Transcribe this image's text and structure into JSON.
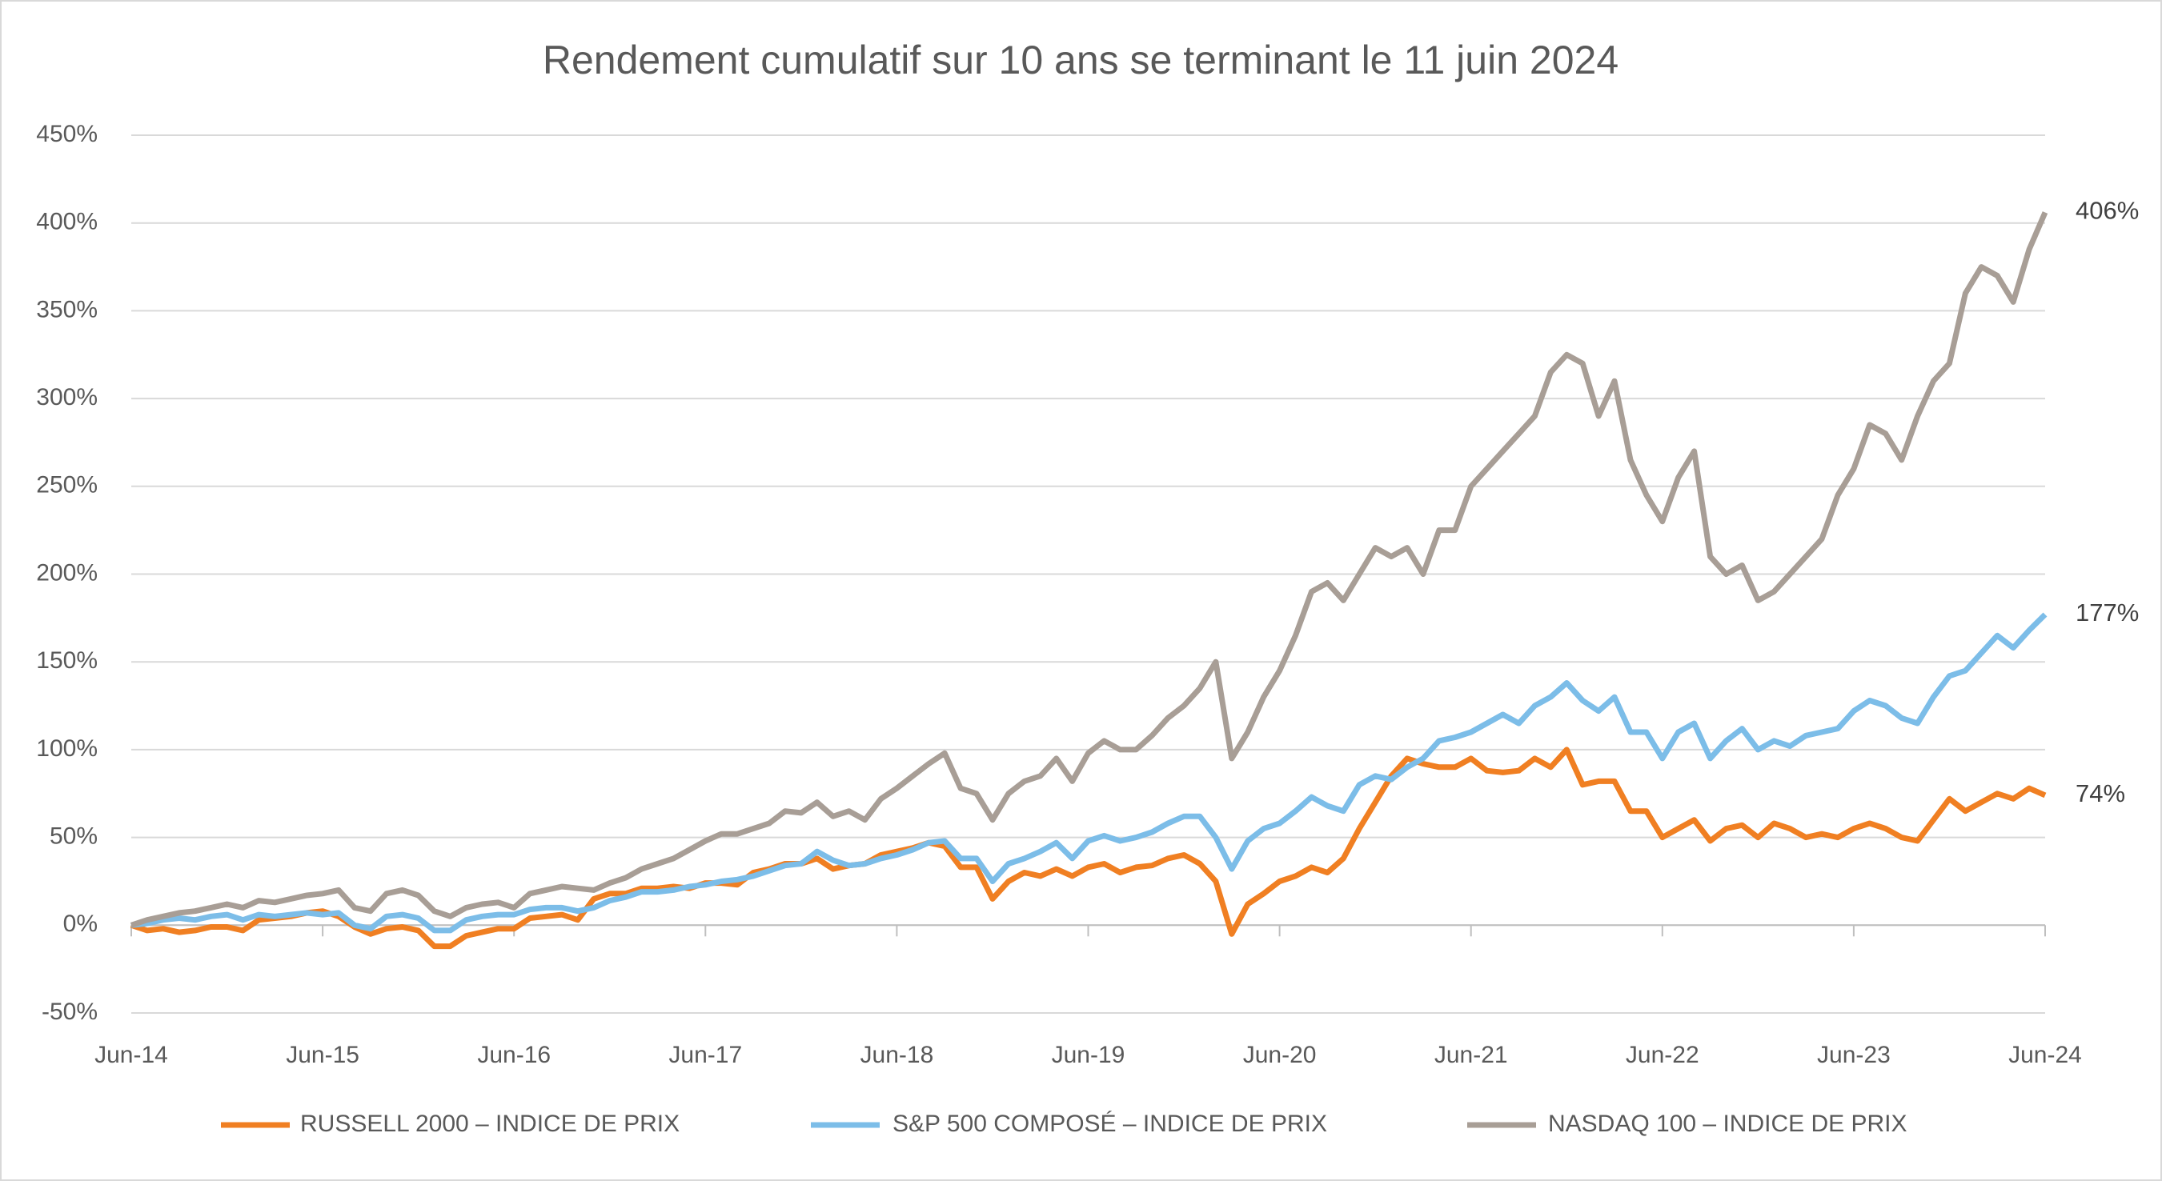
{
  "chart_data": {
    "type": "line",
    "title": "Rendement cumulatif sur 10 ans se terminant le 11 juin 2024",
    "categories": [
      "Jun-14",
      null,
      null,
      null,
      null,
      null,
      null,
      null,
      null,
      null,
      null,
      null,
      "Jun-15",
      null,
      null,
      null,
      null,
      null,
      null,
      null,
      null,
      null,
      null,
      null,
      "Jun-16",
      null,
      null,
      null,
      null,
      null,
      null,
      null,
      null,
      null,
      null,
      null,
      "Jun-17",
      null,
      null,
      null,
      null,
      null,
      null,
      null,
      null,
      null,
      null,
      null,
      "Jun-18",
      null,
      null,
      null,
      null,
      null,
      null,
      null,
      null,
      null,
      null,
      null,
      "Jun-19",
      null,
      null,
      null,
      null,
      null,
      null,
      null,
      null,
      null,
      null,
      null,
      "Jun-20",
      null,
      null,
      null,
      null,
      null,
      null,
      null,
      null,
      null,
      null,
      null,
      "Jun-21",
      null,
      null,
      null,
      null,
      null,
      null,
      null,
      null,
      null,
      null,
      null,
      "Jun-22",
      null,
      null,
      null,
      null,
      null,
      null,
      null,
      null,
      null,
      null,
      null,
      "Jun-23",
      null,
      null,
      null,
      null,
      null,
      null,
      null,
      null,
      null,
      null,
      null,
      "Jun-24"
    ],
    "series": [
      {
        "name": "RUSSELL 2000 – INDICE DE PRIX",
        "color": "#f07f22",
        "values": [
          0,
          -3,
          -2,
          -4,
          -3,
          -1,
          -1,
          -3,
          3,
          4,
          5,
          7,
          8,
          5,
          -1,
          -5,
          -2,
          -1,
          -3,
          -12,
          -12,
          -6,
          -4,
          -2,
          -2,
          4,
          5,
          6,
          3,
          15,
          18,
          18,
          21,
          21,
          22,
          21,
          24,
          24,
          23,
          30,
          32,
          35,
          35,
          38,
          32,
          34,
          35,
          40,
          42,
          44,
          47,
          45,
          33,
          33,
          15,
          25,
          30,
          28,
          32,
          28,
          33,
          35,
          30,
          33,
          34,
          38,
          40,
          35,
          25,
          -5,
          12,
          18,
          25,
          28,
          33,
          30,
          38,
          55,
          70,
          85,
          95,
          92,
          90,
          90,
          95,
          88,
          87,
          88,
          95,
          90,
          100,
          80,
          82,
          82,
          65,
          65,
          50,
          55,
          60,
          48,
          55,
          57,
          50,
          58,
          55,
          50,
          52,
          50,
          55,
          58,
          55,
          50,
          48,
          60,
          72,
          65,
          70,
          75,
          72,
          78,
          74
        ],
        "value_labels": [
          null,
          null,
          null,
          null,
          null,
          null,
          null,
          null,
          null,
          null,
          null,
          null,
          null,
          null,
          null,
          null,
          null,
          null,
          null,
          null,
          null,
          null,
          null,
          null,
          null,
          null,
          null,
          null,
          null,
          null,
          null,
          null,
          null,
          null,
          null,
          null,
          null,
          null,
          null,
          null,
          null,
          null,
          null,
          null,
          null,
          null,
          null,
          null,
          null,
          null,
          null,
          null,
          null,
          null,
          null,
          null,
          null,
          null,
          null,
          null,
          null,
          null,
          null,
          null,
          null,
          null,
          null,
          null,
          null,
          null,
          null,
          null,
          null,
          null,
          null,
          null,
          null,
          null,
          null,
          null,
          null,
          null,
          null,
          null,
          null,
          null,
          null,
          null,
          null,
          null,
          null,
          null,
          null,
          null,
          null,
          null,
          null,
          null,
          null,
          null,
          null,
          null,
          null,
          null,
          null,
          null,
          null,
          null,
          null,
          null,
          null,
          null,
          null,
          null,
          null,
          null,
          null,
          null,
          null,
          null,
          "74%"
        ]
      },
      {
        "name": "S&P 500 COMPOSÉ – INDICE DE PRIX",
        "color": "#7cbde8",
        "values": [
          0,
          1,
          3,
          4,
          3,
          5,
          6,
          3,
          6,
          5,
          6,
          7,
          6,
          7,
          0,
          -2,
          5,
          6,
          4,
          -3,
          -3,
          3,
          5,
          6,
          6,
          9,
          10,
          10,
          8,
          10,
          14,
          16,
          19,
          19,
          20,
          22,
          23,
          25,
          26,
          28,
          31,
          34,
          35,
          42,
          37,
          34,
          35,
          38,
          40,
          43,
          47,
          48,
          38,
          38,
          25,
          35,
          38,
          42,
          47,
          38,
          48,
          51,
          48,
          50,
          53,
          58,
          62,
          62,
          50,
          32,
          48,
          55,
          58,
          65,
          73,
          68,
          65,
          80,
          85,
          83,
          90,
          95,
          105,
          107,
          110,
          115,
          120,
          115,
          125,
          130,
          138,
          128,
          122,
          130,
          110,
          110,
          95,
          110,
          115,
          95,
          105,
          112,
          100,
          105,
          102,
          108,
          110,
          112,
          122,
          128,
          125,
          118,
          115,
          130,
          142,
          145,
          155,
          165,
          158,
          168,
          177
        ],
        "value_labels": [
          null,
          null,
          null,
          null,
          null,
          null,
          null,
          null,
          null,
          null,
          null,
          null,
          null,
          null,
          null,
          null,
          null,
          null,
          null,
          null,
          null,
          null,
          null,
          null,
          null,
          null,
          null,
          null,
          null,
          null,
          null,
          null,
          null,
          null,
          null,
          null,
          null,
          null,
          null,
          null,
          null,
          null,
          null,
          null,
          null,
          null,
          null,
          null,
          null,
          null,
          null,
          null,
          null,
          null,
          null,
          null,
          null,
          null,
          null,
          null,
          null,
          null,
          null,
          null,
          null,
          null,
          null,
          null,
          null,
          null,
          null,
          null,
          null,
          null,
          null,
          null,
          null,
          null,
          null,
          null,
          null,
          null,
          null,
          null,
          null,
          null,
          null,
          null,
          null,
          null,
          null,
          null,
          null,
          null,
          null,
          null,
          null,
          null,
          null,
          null,
          null,
          null,
          null,
          null,
          null,
          null,
          null,
          null,
          null,
          null,
          null,
          null,
          null,
          null,
          null,
          null,
          null,
          null,
          null,
          null,
          "177%"
        ]
      },
      {
        "name": "NASDAQ 100 – INDICE DE PRIX",
        "color": "#a89e96",
        "values": [
          0,
          3,
          5,
          7,
          8,
          10,
          12,
          10,
          14,
          13,
          15,
          17,
          18,
          20,
          10,
          8,
          18,
          20,
          17,
          8,
          5,
          10,
          12,
          13,
          10,
          18,
          20,
          22,
          21,
          20,
          24,
          27,
          32,
          35,
          38,
          43,
          48,
          52,
          52,
          55,
          58,
          65,
          64,
          70,
          62,
          65,
          60,
          72,
          78,
          85,
          92,
          98,
          78,
          75,
          60,
          75,
          82,
          85,
          95,
          82,
          98,
          105,
          100,
          100,
          108,
          118,
          125,
          135,
          150,
          95,
          110,
          130,
          145,
          165,
          190,
          195,
          185,
          200,
          215,
          210,
          215,
          200,
          225,
          225,
          250,
          260,
          270,
          280,
          290,
          315,
          325,
          320,
          290,
          310,
          265,
          245,
          230,
          255,
          270,
          210,
          200,
          205,
          185,
          190,
          200,
          210,
          220,
          245,
          260,
          285,
          280,
          265,
          290,
          310,
          320,
          360,
          375,
          370,
          355,
          385,
          406
        ],
        "value_labels": [
          null,
          null,
          null,
          null,
          null,
          null,
          null,
          null,
          null,
          null,
          null,
          null,
          null,
          null,
          null,
          null,
          null,
          null,
          null,
          null,
          null,
          null,
          null,
          null,
          null,
          null,
          null,
          null,
          null,
          null,
          null,
          null,
          null,
          null,
          null,
          null,
          null,
          null,
          null,
          null,
          null,
          null,
          null,
          null,
          null,
          null,
          null,
          null,
          null,
          null,
          null,
          null,
          null,
          null,
          null,
          null,
          null,
          null,
          null,
          null,
          null,
          null,
          null,
          null,
          null,
          null,
          null,
          null,
          null,
          null,
          null,
          null,
          null,
          null,
          null,
          null,
          null,
          null,
          null,
          null,
          null,
          null,
          null,
          null,
          null,
          null,
          null,
          null,
          null,
          null,
          null,
          null,
          null,
          null,
          null,
          null,
          null,
          null,
          null,
          null,
          null,
          null,
          null,
          null,
          null,
          null,
          null,
          null,
          null,
          null,
          null,
          null,
          null,
          null,
          null,
          null,
          null,
          null,
          null,
          null,
          "406%"
        ]
      }
    ],
    "ylim": [
      -50,
      450
    ],
    "yticks": [
      {
        "value": -50,
        "label": "-50%"
      },
      {
        "value": 0,
        "label": "0%"
      },
      {
        "value": 50,
        "label": "50%"
      },
      {
        "value": 100,
        "label": "100%"
      },
      {
        "value": 150,
        "label": "150%"
      },
      {
        "value": 200,
        "label": "200%"
      },
      {
        "value": 250,
        "label": "250%"
      },
      {
        "value": 300,
        "label": "300%"
      },
      {
        "value": 350,
        "label": "350%"
      },
      {
        "value": 400,
        "label": "400%"
      },
      {
        "value": 450,
        "label": "450%"
      }
    ],
    "grid": true,
    "legend": "bottom"
  }
}
